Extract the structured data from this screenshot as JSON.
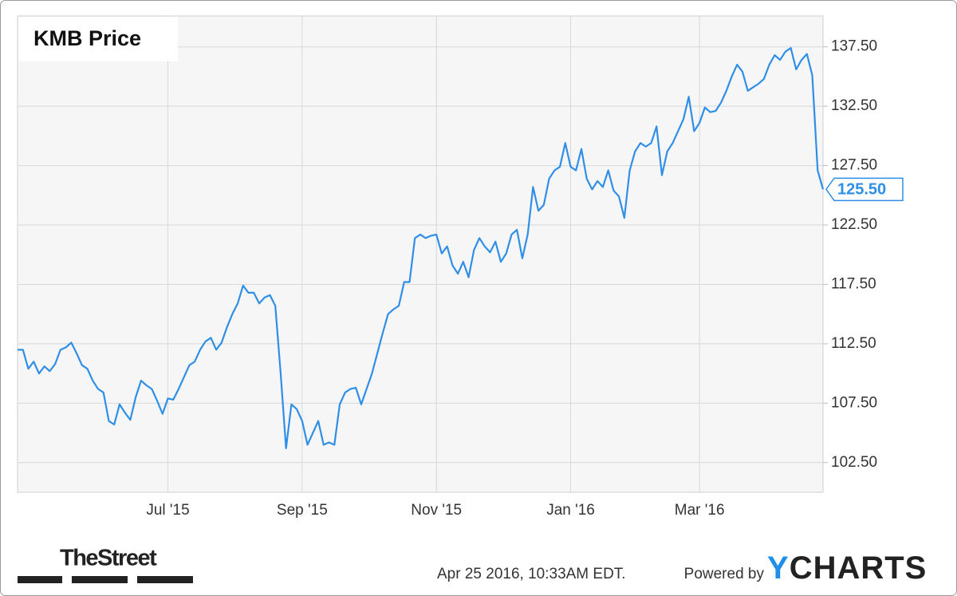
{
  "chart_data": {
    "type": "line",
    "title": "KMB Price",
    "color": "#2f8fe6",
    "categories": [
      null,
      null,
      null,
      null,
      null,
      null,
      null,
      null,
      null,
      null,
      null,
      null,
      null,
      null,
      null,
      null,
      null,
      null,
      null,
      null,
      null,
      null,
      null,
      null,
      null,
      null,
      null,
      null,
      "Jul '15",
      null,
      null,
      null,
      null,
      null,
      null,
      null,
      null,
      null,
      null,
      null,
      null,
      null,
      null,
      null,
      null,
      null,
      null,
      null,
      null,
      null,
      null,
      null,
      null,
      "Sep '15",
      null,
      null,
      null,
      null,
      null,
      null,
      null,
      null,
      null,
      null,
      null,
      null,
      null,
      null,
      null,
      null,
      null,
      null,
      null,
      null,
      null,
      null,
      null,
      null,
      "Nov '15",
      null,
      null,
      null,
      null,
      null,
      null,
      null,
      null,
      null,
      null,
      null,
      null,
      null,
      null,
      null,
      null,
      null,
      null,
      null,
      null,
      null,
      null,
      null,
      null,
      "Jan '16",
      null,
      null,
      null,
      null,
      null,
      null,
      null,
      null,
      null,
      null,
      null,
      null,
      null,
      null,
      null,
      null,
      null,
      null,
      null,
      null,
      null,
      null,
      null,
      "Mar '16",
      null,
      null,
      null,
      null,
      null,
      null,
      null,
      null,
      null,
      null,
      null,
      null,
      null,
      null,
      null,
      null,
      null,
      null,
      null,
      null,
      null,
      null,
      null
    ],
    "values": [
      112.0,
      112.0,
      110.4,
      111.0,
      110.0,
      110.6,
      110.2,
      110.8,
      112.0,
      112.2,
      112.6,
      111.7,
      110.7,
      110.4,
      109.4,
      108.7,
      108.4,
      106.0,
      105.7,
      107.4,
      106.7,
      106.1,
      108.0,
      109.4,
      109.0,
      108.7,
      107.7,
      106.6,
      107.9,
      107.8,
      108.7,
      109.7,
      110.7,
      111.0,
      112.0,
      112.7,
      113.0,
      112.0,
      112.6,
      113.9,
      115.0,
      115.9,
      117.4,
      116.8,
      116.8,
      115.9,
      116.4,
      116.6,
      115.7,
      110.0,
      103.7,
      107.4,
      107.0,
      106.0,
      104.0,
      105.0,
      106.0,
      104.0,
      104.2,
      104.0,
      107.4,
      108.4,
      108.7,
      108.8,
      107.4,
      108.7,
      110.0,
      111.7,
      113.4,
      115.0,
      115.4,
      115.7,
      117.7,
      117.7,
      121.4,
      121.7,
      121.4,
      121.6,
      121.7,
      120.1,
      120.7,
      119.1,
      118.4,
      119.4,
      118.1,
      120.4,
      121.4,
      120.7,
      120.2,
      121.1,
      119.4,
      120.1,
      121.7,
      122.1,
      119.7,
      121.7,
      125.7,
      123.7,
      124.2,
      126.4,
      127.1,
      127.4,
      129.4,
      127.4,
      127.1,
      128.9,
      126.4,
      125.5,
      126.2,
      125.7,
      127.1,
      125.4,
      124.9,
      123.1,
      127.1,
      128.7,
      129.4,
      129.1,
      129.4,
      130.8,
      126.7,
      128.7,
      129.4,
      130.4,
      131.4,
      133.3,
      130.4,
      131.1,
      132.4,
      132.0,
      132.1,
      132.8,
      133.8,
      135.0,
      136.0,
      135.4,
      133.8,
      134.1,
      134.4,
      134.8,
      136.0,
      136.8,
      136.4,
      137.1,
      137.4,
      135.6,
      136.4,
      136.9,
      135.1,
      127.1,
      125.5
    ],
    "last_price": {
      "value": 125.5,
      "label": "125.50"
    },
    "ylim": [
      100,
      140.1
    ],
    "yticks": [
      {
        "value": 102.5,
        "label": "102.50"
      },
      {
        "value": 107.5,
        "label": "107.50"
      },
      {
        "value": 112.5,
        "label": "112.50"
      },
      {
        "value": 117.5,
        "label": "117.50"
      },
      {
        "value": 122.5,
        "label": "122.50"
      },
      {
        "value": 127.5,
        "label": "127.50"
      },
      {
        "value": 132.5,
        "label": "132.50"
      },
      {
        "value": 137.5,
        "label": "137.50"
      }
    ],
    "grid": true
  },
  "footer": {
    "source": "TheStreet",
    "timestamp": "Apr 25 2016, 10:33AM EDT.",
    "powered_by": "Powered by",
    "brand": "YCHARTS"
  }
}
